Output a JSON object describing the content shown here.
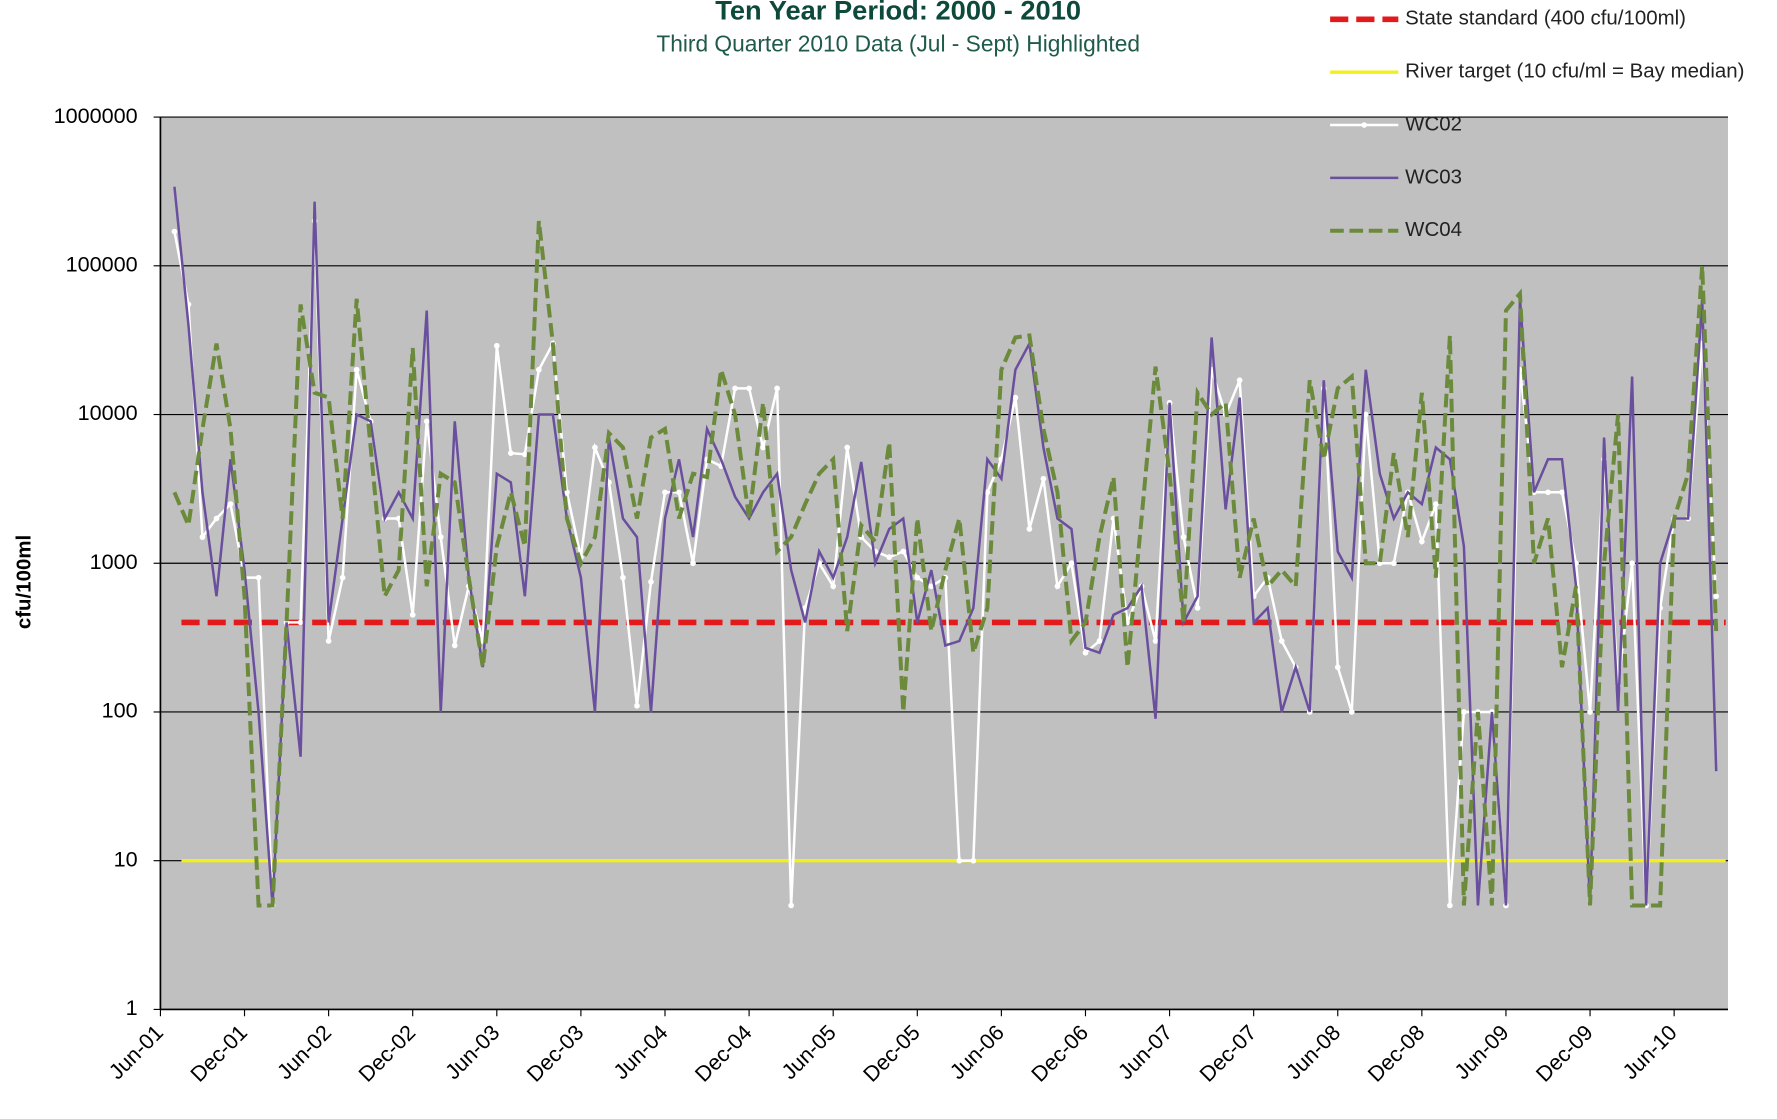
{
  "chart_data": {
    "type": "line",
    "title": "Ten Year Period:  2000 -  2010",
    "subtitle": "Third Quarter 2010 Data (Jul - Sept) Highlighted",
    "y_label": "cfu/100ml",
    "log_y": true,
    "grid": true,
    "legend": "top-right",
    "ylim": [
      1,
      1000000
    ],
    "yticks": [
      1,
      10,
      100,
      1000,
      10000,
      100000,
      1000000
    ],
    "categories": [
      "Jun-01",
      null,
      null,
      null,
      null,
      null,
      "Dec-01",
      null,
      null,
      null,
      null,
      null,
      "Jun-02",
      null,
      null,
      null,
      null,
      null,
      "Dec-02",
      null,
      null,
      null,
      null,
      null,
      "Jun-03",
      null,
      null,
      null,
      null,
      null,
      "Dec-03",
      null,
      null,
      null,
      null,
      null,
      "Jun-04",
      null,
      null,
      null,
      null,
      null,
      "Dec-04",
      null,
      null,
      null,
      null,
      null,
      "Jun-05",
      null,
      null,
      null,
      null,
      null,
      "Dec-05",
      null,
      null,
      null,
      null,
      null,
      "Jun-06",
      null,
      null,
      null,
      null,
      null,
      "Dec-06",
      null,
      null,
      null,
      null,
      null,
      "Jun-07",
      null,
      null,
      null,
      null,
      null,
      "Dec-07",
      null,
      null,
      null,
      null,
      null,
      "Jun-08",
      null,
      null,
      null,
      null,
      null,
      "Dec-08",
      null,
      null,
      null,
      null,
      null,
      "Jun-09",
      null,
      null,
      null,
      null,
      null,
      "Dec-09",
      null,
      null,
      null,
      null,
      null,
      "Jun-10",
      null,
      null,
      null
    ],
    "reference_lines": [
      {
        "name": "State standard    (400 cfu/100ml)",
        "color": "#e31a1c",
        "value": 400,
        "dashed": true
      },
      {
        "name": "River target (10 cfu/ml = Bay median)",
        "color": "#f2ef1a",
        "value": 10,
        "dashed": false
      }
    ],
    "series": [
      {
        "name": "WC02",
        "color": "#ffffff",
        "markers": true,
        "dashed": false,
        "values": [
          null,
          170000,
          55000,
          1500,
          2000,
          2500,
          800,
          800,
          5,
          400,
          400,
          200000,
          300,
          800,
          20000,
          9000,
          2000,
          2000,
          450,
          9000,
          1500,
          280,
          700,
          300,
          29000,
          5500,
          5400,
          20000,
          30000,
          3000,
          1100,
          6000,
          3500,
          800,
          110,
          750,
          3000,
          3000,
          1000,
          5000,
          4500,
          15000,
          15000,
          6000,
          15000,
          5,
          500,
          1000,
          700,
          6000,
          1500,
          1200,
          1100,
          1200,
          800,
          700,
          800,
          10,
          10,
          3000,
          5000,
          13000,
          1700,
          3700,
          700,
          1000,
          250,
          300,
          2000,
          400,
          700,
          300,
          12000,
          1500,
          500,
          20000,
          10000,
          17000,
          600,
          800,
          300,
          200,
          100,
          15000,
          200,
          100,
          10000,
          1000,
          1000,
          3000,
          1400,
          2500,
          5,
          100,
          100,
          100,
          5,
          20000,
          3000,
          3000,
          3000,
          1000,
          100,
          5000,
          150,
          1000,
          5,
          500,
          2000,
          2000,
          30000,
          600
        ]
      },
      {
        "name": "WC03",
        "color": "#6a4f9e",
        "markers": false,
        "dashed": false,
        "values": [
          null,
          340000,
          40000,
          3000,
          600,
          5000,
          900,
          100,
          5,
          400,
          50,
          270000,
          400,
          2000,
          10000,
          9000,
          2000,
          3000,
          2000,
          50000,
          100,
          9000,
          800,
          200,
          4000,
          3500,
          600,
          10000,
          10000,
          2000,
          800,
          100,
          7000,
          2000,
          1500,
          100,
          2000,
          5000,
          1500,
          8000,
          5000,
          2800,
          2000,
          3000,
          4000,
          900,
          400,
          1200,
          800,
          1500,
          4800,
          1000,
          1700,
          2000,
          400,
          900,
          280,
          300,
          500,
          5000,
          3700,
          20000,
          30000,
          6000,
          2000,
          1700,
          270,
          250,
          450,
          500,
          700,
          90,
          12000,
          400,
          600,
          33000,
          2300,
          13000,
          400,
          500,
          100,
          200,
          100,
          17000,
          1200,
          800,
          20000,
          4000,
          2000,
          3000,
          2500,
          6000,
          5000,
          1300,
          5,
          100,
          5,
          60000,
          3000,
          5000,
          5000,
          700,
          5,
          7000,
          100,
          18000,
          5,
          1000,
          2000,
          2000,
          60000,
          40
        ]
      },
      {
        "name": "WC04",
        "color": "#6b8a3c",
        "markers": false,
        "dashed": true,
        "values": [
          null,
          3000,
          1800,
          8000,
          30000,
          8000,
          600,
          5,
          5,
          400,
          55000,
          14000,
          13000,
          2000,
          60000,
          6000,
          600,
          900,
          28000,
          700,
          4000,
          3500,
          800,
          200,
          1300,
          3000,
          1300,
          200000,
          30000,
          2000,
          1000,
          1500,
          7500,
          6000,
          2000,
          7000,
          8000,
          2000,
          4000,
          3800,
          20000,
          10000,
          2000,
          12000,
          1200,
          1500,
          2500,
          4000,
          5000,
          350,
          1800,
          1400,
          6500,
          100,
          2000,
          350,
          900,
          2000,
          250,
          500,
          20000,
          33000,
          34000,
          8000,
          3000,
          300,
          400,
          1500,
          3800,
          200,
          2000,
          21000,
          4000,
          400,
          14000,
          10000,
          12000,
          800,
          2000,
          700,
          900,
          700,
          17000,
          5000,
          15000,
          18000,
          1000,
          1000,
          5500,
          1500,
          14000,
          800,
          34000,
          5,
          100,
          5,
          50000,
          65000,
          1000,
          2000,
          200,
          700,
          5,
          1000,
          10000,
          5,
          5,
          5,
          2000,
          4000,
          100000,
          350
        ]
      }
    ]
  }
}
